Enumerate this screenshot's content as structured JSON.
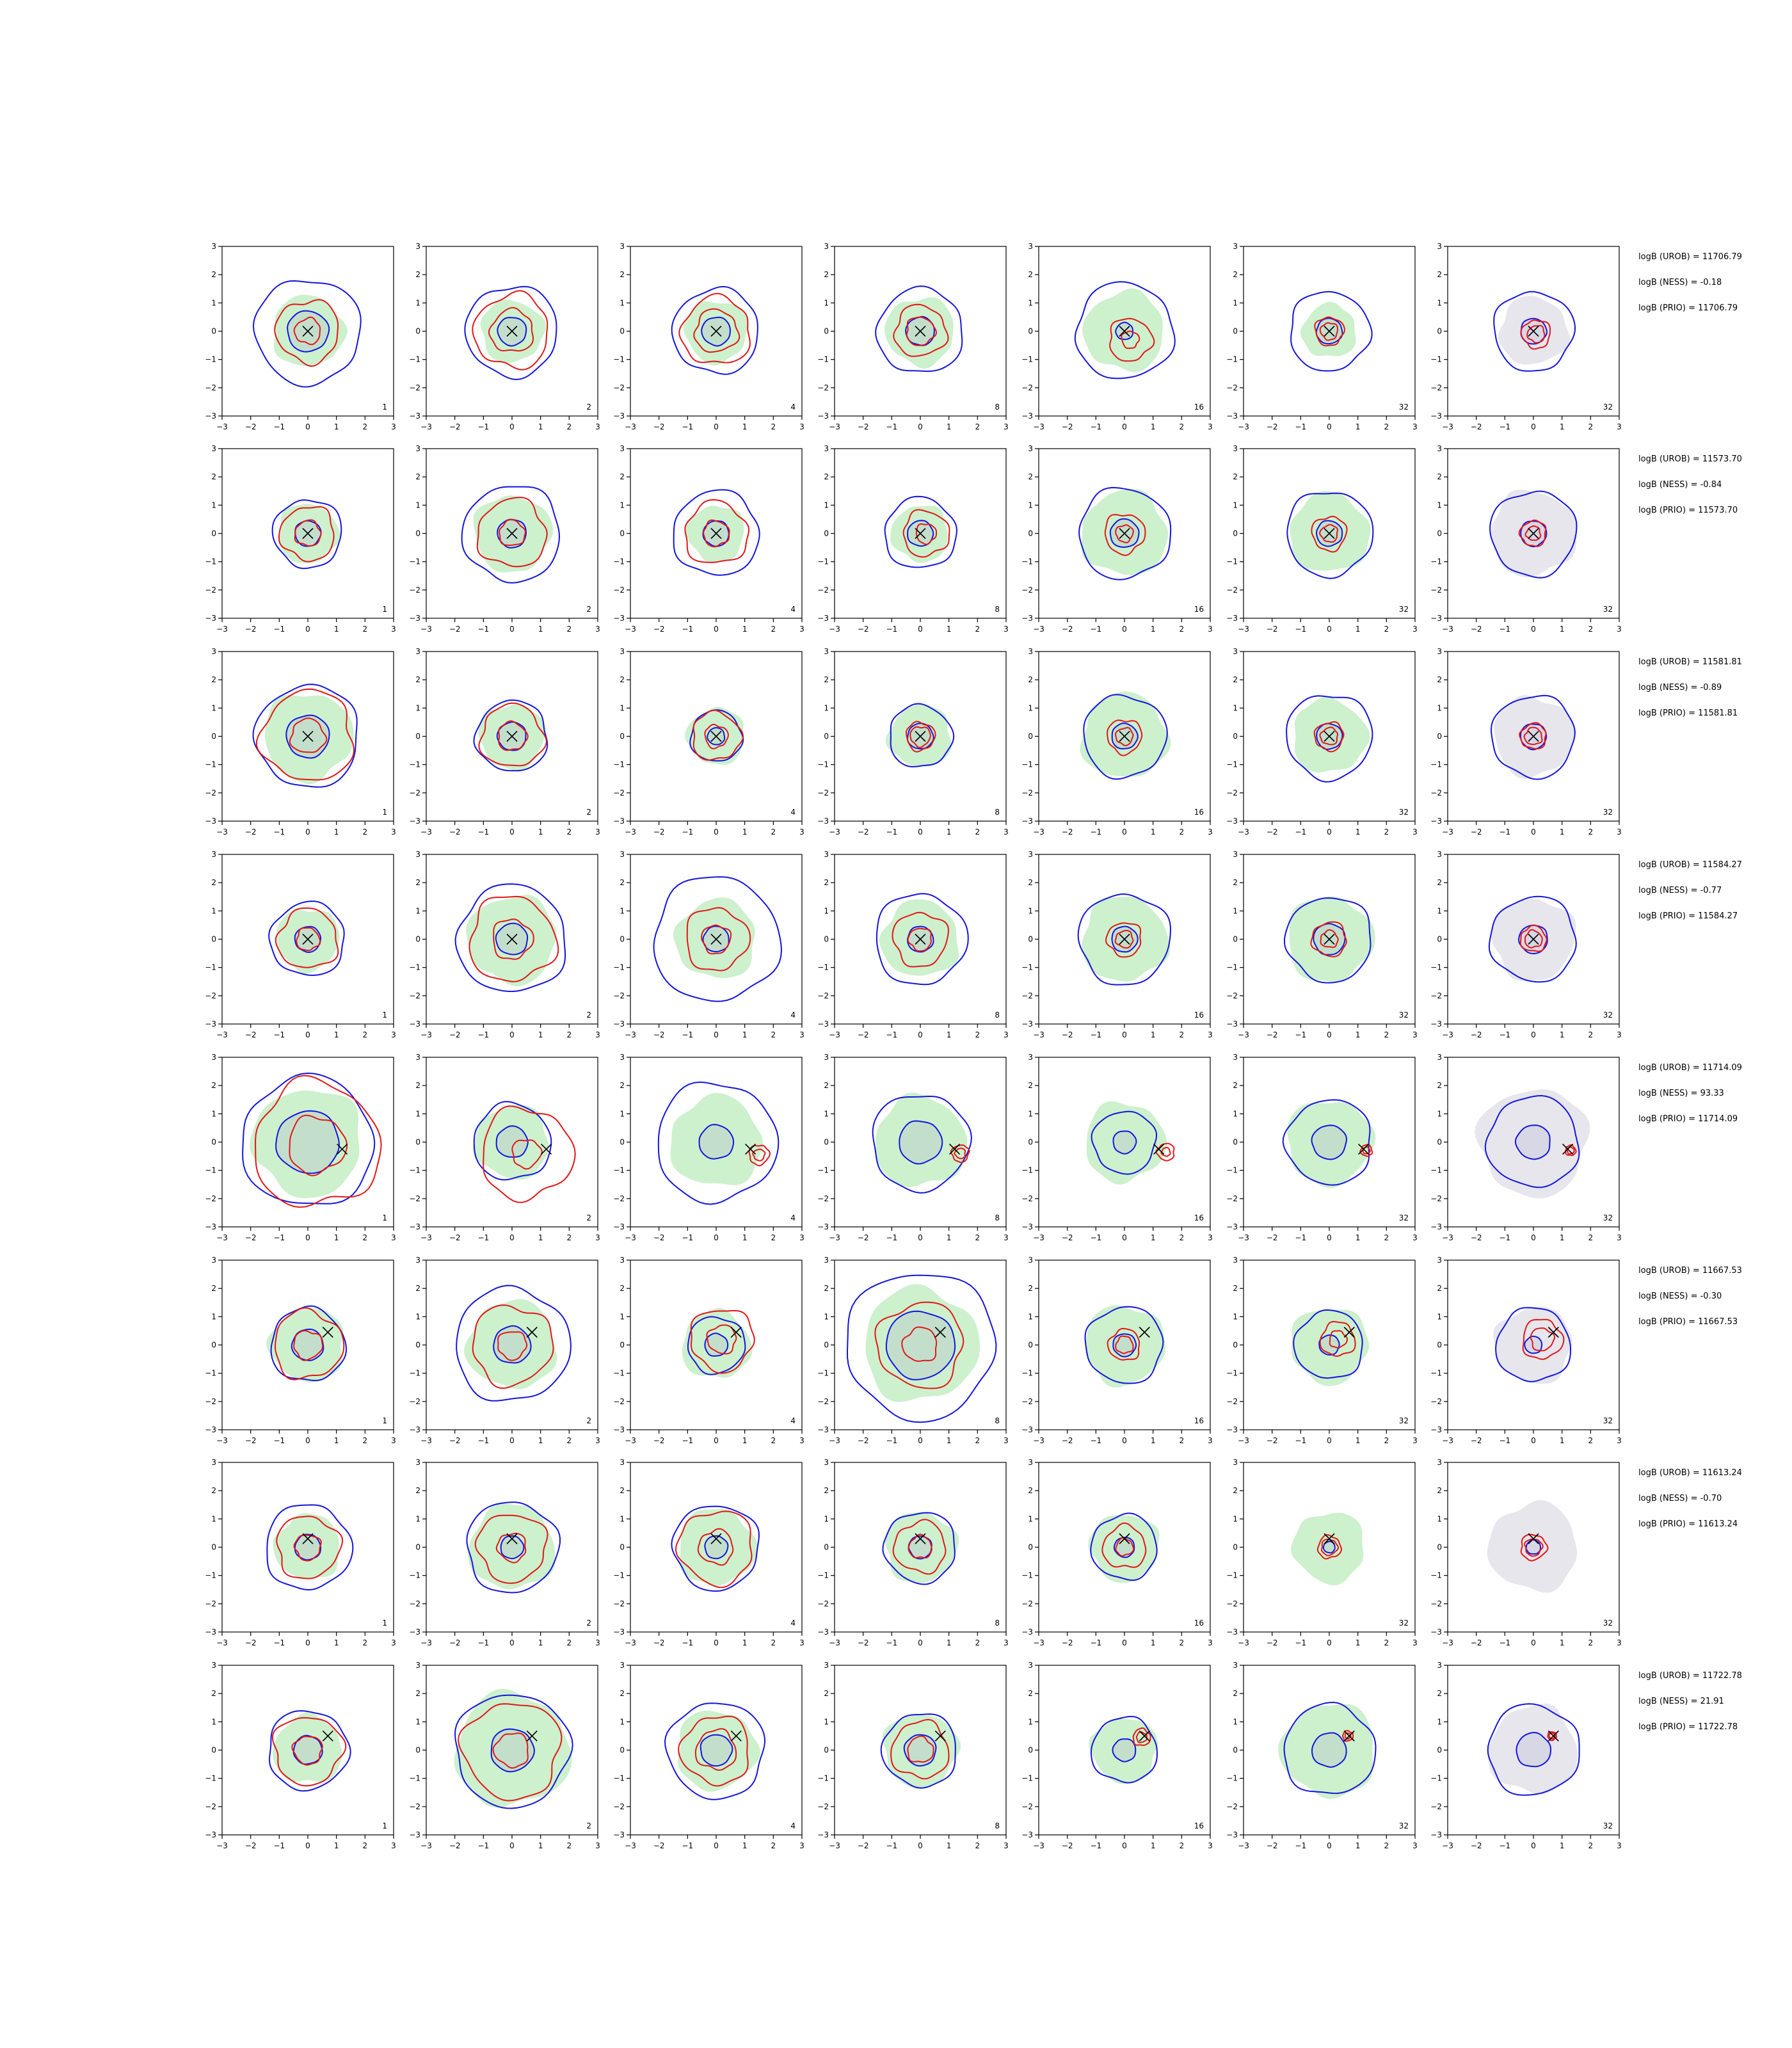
{
  "chart_data": {
    "type": "contour-grid",
    "xlim": [
      -3,
      3
    ],
    "ylim": [
      -3,
      3
    ],
    "xticks": [
      -3,
      -2,
      -1,
      0,
      1,
      2,
      3
    ],
    "yticks": [
      -3,
      -2,
      -1,
      0,
      1,
      2,
      3
    ],
    "colors": {
      "green_fill": "#cdf0cd",
      "gray_fill": "#e6e6ec",
      "blue_contour": "#1515dd",
      "red_contour": "#e01818",
      "marker": "#000000"
    },
    "column_labels": [
      "1",
      "2",
      "4",
      "8",
      "16",
      "32",
      "32"
    ],
    "rows": [
      {
        "marker": [
          0.0,
          0.0
        ],
        "stats": [
          "logB (UROB) = 11706.79",
          "logB (NESS) = -0.18",
          "logB (PRIO) = 11706.79"
        ],
        "panels": [
          {
            "green": 1.25,
            "blueIn": 0.72,
            "blueOut": 1.85,
            "red": [
              1.1,
              0.45
            ],
            "redCenter": [
              0,
              0
            ],
            "wob": 1
          },
          {
            "green": 1.1,
            "blueIn": 0.5,
            "blueOut": 1.6,
            "red": [
              1.3,
              0.75
            ],
            "redCenter": [
              0,
              0
            ],
            "wob": 2
          },
          {
            "green": 1.1,
            "blueIn": 0.5,
            "blueOut": 1.5,
            "red": [
              1.2,
              0.75
            ],
            "redCenter": [
              0,
              0
            ],
            "wob": 3
          },
          {
            "green": 1.2,
            "blueIn": 0.5,
            "blueOut": 1.5,
            "red": [
              0.9,
              0.5
            ],
            "redCenter": [
              0,
              0
            ],
            "wob": 4
          },
          {
            "green": 1.4,
            "blueIn": 0.3,
            "blueOut": 1.7,
            "red": [
              0.75,
              0.3
            ],
            "redCenter": [
              0.2,
              -0.3
            ],
            "wob": 5
          },
          {
            "green": 0.95,
            "blueIn": 0.45,
            "blueOut": 1.4,
            "red": [
              0.5,
              0.3
            ],
            "redCenter": [
              0,
              0
            ],
            "wob": 6
          },
          {
            "gray": 1.2,
            "blueIn": 0.45,
            "blueOut": 1.4,
            "red": [
              0.5,
              0.3
            ],
            "redCenter": [
              0.1,
              -0.1
            ],
            "wob": 7
          }
        ]
      },
      {
        "marker": [
          0.0,
          0.0
        ],
        "stats": [
          "logB (UROB) = 11573.70",
          "logB (NESS) = -0.84",
          "logB (PRIO) = 11573.70"
        ],
        "panels": [
          {
            "green": 1.05,
            "blueIn": 0.45,
            "blueOut": 1.2,
            "red": [
              0.95,
              0.45
            ],
            "redCenter": [
              0,
              0
            ],
            "wob": 8
          },
          {
            "green": 1.35,
            "blueIn": 0.5,
            "blueOut": 1.7,
            "red": [
              1.2,
              0.45
            ],
            "redCenter": [
              0,
              0
            ],
            "wob": 9
          },
          {
            "green": 1.0,
            "blueIn": 0.45,
            "blueOut": 1.5,
            "red": [
              1.1,
              0.45
            ],
            "redCenter": [
              0,
              0
            ],
            "wob": 10
          },
          {
            "green": 1.0,
            "blueIn": 0.45,
            "blueOut": 1.25,
            "red": [
              0.8,
              0.35
            ],
            "redCenter": [
              0.2,
              0
            ],
            "wob": 11
          },
          {
            "green": 1.5,
            "blueIn": 0.5,
            "blueOut": 1.6,
            "red": [
              0.7,
              0.3
            ],
            "redCenter": [
              0,
              0
            ],
            "wob": 12
          },
          {
            "green": 1.4,
            "blueIn": 0.45,
            "blueOut": 1.5,
            "red": [
              0.6,
              0.3
            ],
            "redCenter": [
              0,
              0
            ],
            "wob": 13
          },
          {
            "gray": 1.5,
            "blueIn": 0.45,
            "blueOut": 1.5,
            "red": [
              0.45,
              0.25
            ],
            "redCenter": [
              0,
              0
            ],
            "wob": 14
          }
        ]
      },
      {
        "marker": [
          0.0,
          0.0
        ],
        "stats": [
          "logB (UROB) = 11581.81",
          "logB (NESS) = -0.89",
          "logB (PRIO) = 11581.81"
        ],
        "panels": [
          {
            "green": 1.55,
            "blueIn": 0.75,
            "blueOut": 1.8,
            "red": [
              1.6,
              0.6
            ],
            "redCenter": [
              0,
              0
            ],
            "wob": 15
          },
          {
            "green": 1.15,
            "blueIn": 0.5,
            "blueOut": 1.25,
            "red": [
              1.1,
              0.5
            ],
            "redCenter": [
              0,
              0
            ],
            "wob": 16
          },
          {
            "green": 1.0,
            "blueIn": 0.3,
            "blueOut": 0.9,
            "red": [
              0.85,
              0.4
            ],
            "redCenter": [
              0,
              0
            ],
            "wob": 17
          },
          {
            "green": 1.1,
            "blueIn": 0.45,
            "blueOut": 1.1,
            "red": [
              0.5,
              0.35
            ],
            "redCenter": [
              0,
              0
            ],
            "wob": 18
          },
          {
            "green": 1.5,
            "blueIn": 0.45,
            "blueOut": 1.45,
            "red": [
              0.6,
              0.3
            ],
            "redCenter": [
              0,
              0
            ],
            "wob": 19
          },
          {
            "green": 1.3,
            "blueIn": 0.45,
            "blueOut": 1.5,
            "red": [
              0.5,
              0.3
            ],
            "redCenter": [
              0,
              0
            ],
            "wob": 20
          },
          {
            "gray": 1.4,
            "blueIn": 0.45,
            "blueOut": 1.45,
            "red": [
              0.45,
              0.3
            ],
            "redCenter": [
              0,
              0
            ],
            "wob": 21
          }
        ]
      },
      {
        "marker": [
          0.0,
          0.0
        ],
        "stats": [
          "logB (UROB) = 11584.27",
          "logB (NESS) = -0.77",
          "logB (PRIO) = 11584.27"
        ],
        "panels": [
          {
            "green": 1.1,
            "blueIn": 0.45,
            "blueOut": 1.3,
            "red": [
              1.05,
              0.4
            ],
            "redCenter": [
              0,
              0
            ],
            "wob": 22
          },
          {
            "green": 1.55,
            "blueIn": 0.55,
            "blueOut": 1.9,
            "red": [
              1.5,
              0.7
            ],
            "redCenter": [
              0,
              0
            ],
            "wob": 23
          },
          {
            "green": 1.4,
            "blueIn": 0.45,
            "blueOut": 2.2,
            "red": [
              1.1,
              0.5
            ],
            "redCenter": [
              0,
              0
            ],
            "wob": 24
          },
          {
            "green": 1.35,
            "blueIn": 0.45,
            "blueOut": 1.6,
            "red": [
              0.95,
              0.4
            ],
            "redCenter": [
              0,
              0
            ],
            "wob": 25
          },
          {
            "green": 1.5,
            "blueIn": 0.45,
            "blueOut": 1.6,
            "red": [
              0.6,
              0.3
            ],
            "redCenter": [
              0,
              0
            ],
            "wob": 26
          },
          {
            "green": 1.5,
            "blueIn": 0.55,
            "blueOut": 1.5,
            "red": [
              0.6,
              0.3
            ],
            "redCenter": [
              0,
              0
            ],
            "wob": 27
          },
          {
            "gray": 1.45,
            "blueIn": 0.5,
            "blueOut": 1.5,
            "red": [
              0.45,
              0.3
            ],
            "redCenter": [
              0,
              0
            ],
            "wob": 28
          }
        ]
      },
      {
        "marker": [
          1.2,
          -0.25
        ],
        "stats": [
          "logB (UROB) = 11714.09",
          "logB (NESS) = 93.33",
          "logB (PRIO) = 11714.09"
        ],
        "panels": [
          {
            "green": 1.9,
            "blueIn": 1.1,
            "blueOut": 2.3,
            "red": [
              2.2,
              1.0
            ],
            "redCenter": [
              0.3,
              -0.1
            ],
            "wob": 29
          },
          {
            "green": 1.3,
            "blueIn": 0.55,
            "blueOut": 1.35,
            "red": [
              1.6,
              0.5
            ],
            "redCenter": [
              0.5,
              -0.4
            ],
            "wob": 30
          },
          {
            "green": 1.6,
            "blueIn": 0.6,
            "blueOut": 2.1,
            "red": [
              0.35,
              0.2
            ],
            "redCenter": [
              1.5,
              -0.45
            ],
            "wob": 31
          },
          {
            "green": 1.6,
            "blueIn": 0.75,
            "blueOut": 1.7,
            "red": [
              0.3,
              0.18
            ],
            "redCenter": [
              1.4,
              -0.4
            ],
            "wob": 32
          },
          {
            "green": 1.4,
            "blueIn": 0.4,
            "blueOut": 1.1,
            "red": [
              0.3,
              0.15
            ],
            "redCenter": [
              1.45,
              -0.35
            ],
            "wob": 33
          },
          {
            "green": 1.5,
            "blueIn": 0.6,
            "blueOut": 1.5,
            "red": [
              0.2,
              0.12
            ],
            "redCenter": [
              1.3,
              -0.3
            ],
            "wob": 34
          },
          {
            "gray": 1.9,
            "blueIn": 0.6,
            "blueOut": 1.6,
            "red": [
              0.18,
              0.12
            ],
            "redCenter": [
              1.3,
              -0.3
            ],
            "wob": 35
          }
        ]
      },
      {
        "marker": [
          0.7,
          0.45
        ],
        "stats": [
          "logB (UROB) = 11667.53",
          "logB (NESS) = -0.30",
          "logB (PRIO) = 11667.53"
        ],
        "panels": [
          {
            "green": 1.3,
            "blueIn": 0.55,
            "blueOut": 1.3,
            "red": [
              1.2,
              0.5
            ],
            "redCenter": [
              0,
              0
            ],
            "wob": 36
          },
          {
            "green": 1.55,
            "blueIn": 0.65,
            "blueOut": 2.0,
            "red": [
              1.4,
              0.5
            ],
            "redCenter": [
              0,
              0
            ],
            "wob": 37
          },
          {
            "green": 1.2,
            "blueIn": 0.4,
            "blueOut": 1.0,
            "red": [
              1.1,
              0.5
            ],
            "redCenter": [
              0.2,
              0.2
            ],
            "wob": 38
          },
          {
            "green": 2.0,
            "blueIn": 1.2,
            "blueOut": 2.6,
            "red": [
              1.5,
              0.6
            ],
            "redCenter": [
              0,
              0
            ],
            "wob": 39
          },
          {
            "green": 1.4,
            "blueIn": 0.4,
            "blueOut": 1.35,
            "red": [
              0.55,
              0.3
            ],
            "redCenter": [
              0,
              0
            ],
            "wob": 40
          },
          {
            "green": 1.35,
            "blueIn": 0.35,
            "blueOut": 1.2,
            "red": [
              0.6,
              0.3
            ],
            "redCenter": [
              0.3,
              0.2
            ],
            "wob": 41
          },
          {
            "gray": 1.35,
            "blueIn": 0.3,
            "blueOut": 1.3,
            "red": [
              0.7,
              0.4
            ],
            "redCenter": [
              0.3,
              0.2
            ],
            "wob": 42
          }
        ]
      },
      {
        "marker": [
          0.0,
          0.3
        ],
        "stats": [
          "logB (UROB) = 11613.24",
          "logB (NESS) = -0.70",
          "logB (PRIO) = 11613.24"
        ],
        "panels": [
          {
            "green": 1.15,
            "blueIn": 0.45,
            "blueOut": 1.5,
            "red": [
              1.1,
              0.45
            ],
            "redCenter": [
              0,
              0
            ],
            "wob": 43
          },
          {
            "green": 1.5,
            "blueIn": 0.4,
            "blueOut": 1.6,
            "red": [
              1.2,
              0.5
            ],
            "redCenter": [
              0,
              0
            ],
            "wob": 44
          },
          {
            "green": 1.35,
            "blueIn": 0.4,
            "blueOut": 1.5,
            "red": [
              1.3,
              0.6
            ],
            "redCenter": [
              0,
              0
            ],
            "wob": 45
          },
          {
            "green": 1.25,
            "blueIn": 0.4,
            "blueOut": 1.25,
            "red": [
              0.9,
              0.4
            ],
            "redCenter": [
              0,
              0
            ],
            "wob": 46
          },
          {
            "green": 1.2,
            "blueIn": 0.35,
            "blueOut": 1.15,
            "red": [
              0.75,
              0.3
            ],
            "redCenter": [
              0,
              0
            ],
            "wob": 47
          },
          {
            "green": 1.25,
            "blueIn": 0.2,
            "blueOut": 0,
            "red": [
              0.4,
              0.28
            ],
            "redCenter": [
              0,
              0
            ],
            "wob": 48
          },
          {
            "gray": 1.55,
            "blueIn": 0.25,
            "blueOut": 0,
            "red": [
              0.45,
              0.3
            ],
            "redCenter": [
              0,
              0
            ],
            "wob": 49
          }
        ]
      },
      {
        "marker": [
          0.7,
          0.5
        ],
        "stats": [
          "logB (UROB) = 11722.78",
          "logB (NESS) = 21.91",
          "logB (PRIO) = 11722.78"
        ],
        "panels": [
          {
            "green": 1.2,
            "blueIn": 0.5,
            "blueOut": 1.4,
            "red": [
              1.2,
              0.5
            ],
            "redCenter": [
              0,
              0
            ],
            "wob": 50
          },
          {
            "green": 2.0,
            "blueIn": 0.75,
            "blueOut": 2.0,
            "red": [
              1.7,
              0.6
            ],
            "redCenter": [
              0,
              0
            ],
            "wob": 51
          },
          {
            "green": 1.4,
            "blueIn": 0.55,
            "blueOut": 1.7,
            "red": [
              1.2,
              0.7
            ],
            "redCenter": [
              0,
              0
            ],
            "wob": 52
          },
          {
            "green": 1.3,
            "blueIn": 0.55,
            "blueOut": 1.3,
            "red": [
              1.0,
              0.45
            ],
            "redCenter": [
              0,
              0
            ],
            "wob": 53
          },
          {
            "green": 1.15,
            "blueIn": 0.4,
            "blueOut": 1.15,
            "red": [
              0.3,
              0.18
            ],
            "redCenter": [
              0.6,
              0.45
            ],
            "wob": 54
          },
          {
            "green": 1.65,
            "blueIn": 0.6,
            "blueOut": 1.6,
            "red": [
              0.18,
              0.1
            ],
            "redCenter": [
              0.65,
              0.5
            ],
            "wob": 55
          },
          {
            "gray": 1.55,
            "blueIn": 0.6,
            "blueOut": 1.6,
            "red": [
              0.15,
              0.1
            ],
            "redCenter": [
              0.65,
              0.5
            ],
            "wob": 56
          }
        ]
      }
    ]
  }
}
